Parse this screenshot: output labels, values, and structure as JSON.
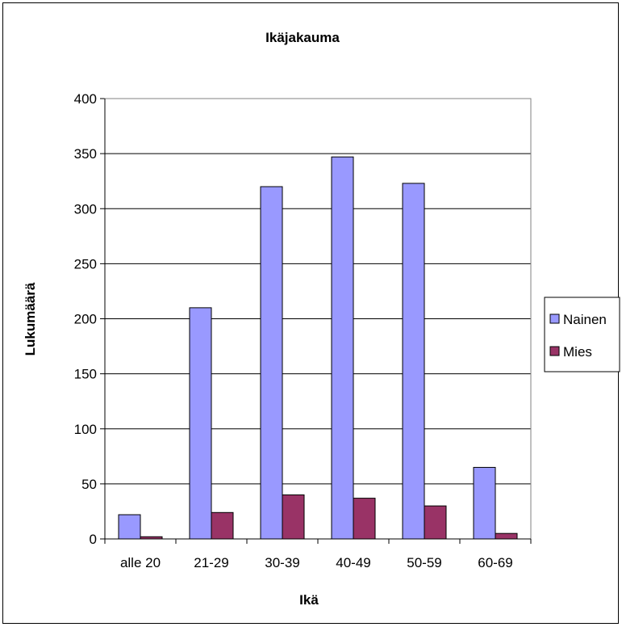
{
  "chart_data": {
    "type": "bar",
    "title": "Ikäjakauma",
    "xlabel": "Ikä",
    "ylabel": "Lukumäärä",
    "categories": [
      "alle 20",
      "21-29",
      "30-39",
      "40-49",
      "50-59",
      "60-69"
    ],
    "series": [
      {
        "name": "Nainen",
        "color": "#9999FF",
        "values": [
          22,
          210,
          320,
          347,
          323,
          65
        ]
      },
      {
        "name": "Mies",
        "color": "#993366",
        "values": [
          2,
          24,
          40,
          37,
          30,
          5
        ]
      }
    ],
    "ylim": [
      0,
      400
    ],
    "yticks": [
      0,
      50,
      100,
      150,
      200,
      250,
      300,
      350,
      400
    ],
    "grid": true,
    "legend": "right"
  }
}
